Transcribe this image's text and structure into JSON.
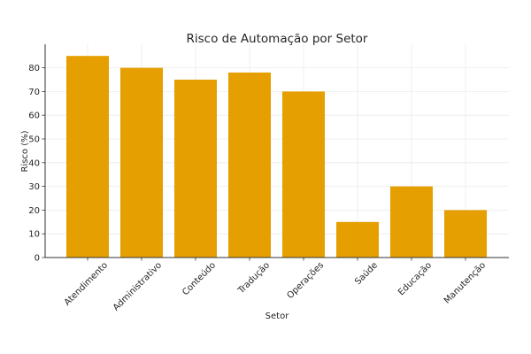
{
  "chart_data": {
    "type": "bar",
    "title": "Risco de Automação por Setor",
    "xlabel": "Setor",
    "ylabel": "Risco (%)",
    "categories": [
      "Atendimento",
      "Administrativo",
      "Conteúdo",
      "Tradução",
      "Operações",
      "Saúde",
      "Educação",
      "Manutenção"
    ],
    "values": [
      85,
      80,
      75,
      78,
      70,
      15,
      30,
      20
    ],
    "ylim": [
      0,
      90
    ],
    "yticks": [
      0,
      10,
      20,
      30,
      40,
      50,
      60,
      70,
      80
    ],
    "grid": true,
    "legend": null,
    "bar_color": "#E69F00"
  }
}
